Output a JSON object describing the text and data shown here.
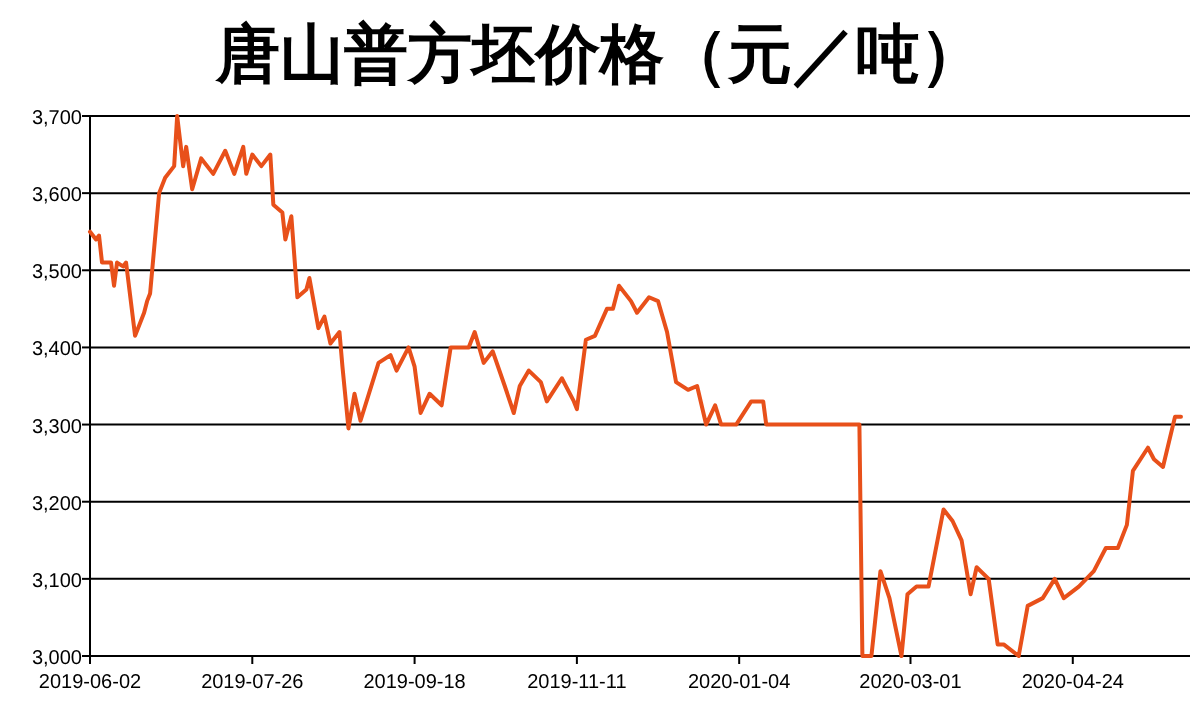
{
  "chart_data": {
    "type": "line",
    "title": "唐山普方坯价格（元／吨）",
    "x": [
      "2019-06-02",
      "2019-06-04",
      "2019-06-05",
      "2019-06-06",
      "2019-06-09",
      "2019-06-10",
      "2019-06-11",
      "2019-06-13",
      "2019-06-14",
      "2019-06-17",
      "2019-06-20",
      "2019-06-21",
      "2019-06-22",
      "2019-06-25",
      "2019-06-27",
      "2019-06-30",
      "2019-07-01",
      "2019-07-03",
      "2019-07-04",
      "2019-07-06",
      "2019-07-09",
      "2019-07-13",
      "2019-07-17",
      "2019-07-20",
      "2019-07-23",
      "2019-07-24",
      "2019-07-26",
      "2019-07-29",
      "2019-08-01",
      "2019-08-02",
      "2019-08-05",
      "2019-08-06",
      "2019-08-08",
      "2019-08-10",
      "2019-08-13",
      "2019-08-14",
      "2019-08-17",
      "2019-08-19",
      "2019-08-21",
      "2019-08-24",
      "2019-08-25",
      "2019-08-27",
      "2019-08-29",
      "2019-08-31",
      "2019-09-04",
      "2019-09-06",
      "2019-09-10",
      "2019-09-12",
      "2019-09-16",
      "2019-09-18",
      "2019-09-20",
      "2019-09-23",
      "2019-09-27",
      "2019-09-30",
      "2019-10-06",
      "2019-10-08",
      "2019-10-11",
      "2019-10-14",
      "2019-10-18",
      "2019-10-21",
      "2019-10-23",
      "2019-10-26",
      "2019-10-30",
      "2019-11-01",
      "2019-11-06",
      "2019-11-10",
      "2019-11-11",
      "2019-11-14",
      "2019-11-17",
      "2019-11-21",
      "2019-11-23",
      "2019-11-25",
      "2019-11-29",
      "2019-12-01",
      "2019-12-05",
      "2019-12-08",
      "2019-12-11",
      "2019-12-14",
      "2019-12-18",
      "2019-12-21",
      "2019-12-24",
      "2019-12-27",
      "2019-12-29",
      "2020-01-03",
      "2020-01-08",
      "2020-01-12",
      "2020-01-13",
      "2020-02-13",
      "2020-02-14",
      "2020-02-17",
      "2020-02-20",
      "2020-02-23",
      "2020-02-27",
      "2020-02-29",
      "2020-03-03",
      "2020-03-07",
      "2020-03-09",
      "2020-03-12",
      "2020-03-15",
      "2020-03-18",
      "2020-03-21",
      "2020-03-23",
      "2020-03-27",
      "2020-03-30",
      "2020-04-01",
      "2020-04-06",
      "2020-04-09",
      "2020-04-14",
      "2020-04-18",
      "2020-04-21",
      "2020-04-26",
      "2020-05-01",
      "2020-05-05",
      "2020-05-09",
      "2020-05-12",
      "2020-05-14",
      "2020-05-19",
      "2020-05-21",
      "2020-05-24",
      "2020-05-28",
      "2020-05-30"
    ],
    "values": [
      3550,
      3540,
      3545,
      3510,
      3510,
      3480,
      3510,
      3505,
      3510,
      3415,
      3445,
      3460,
      3470,
      3600,
      3620,
      3635,
      3700,
      3635,
      3660,
      3605,
      3645,
      3625,
      3655,
      3625,
      3660,
      3625,
      3650,
      3635,
      3650,
      3585,
      3575,
      3540,
      3570,
      3465,
      3475,
      3490,
      3425,
      3440,
      3405,
      3420,
      3375,
      3295,
      3340,
      3305,
      3355,
      3380,
      3390,
      3370,
      3400,
      3375,
      3315,
      3340,
      3325,
      3400,
      3400,
      3420,
      3380,
      3395,
      3350,
      3315,
      3350,
      3370,
      3355,
      3330,
      3360,
      3330,
      3320,
      3410,
      3415,
      3450,
      3450,
      3480,
      3460,
      3445,
      3465,
      3460,
      3420,
      3355,
      3345,
      3350,
      3300,
      3325,
      3300,
      3300,
      3330,
      3330,
      3300,
      3300,
      3000,
      3000,
      3110,
      3075,
      3000,
      3080,
      3090,
      3090,
      3130,
      3190,
      3175,
      3150,
      3080,
      3115,
      3100,
      3015,
      3015,
      3000,
      3065,
      3075,
      3100,
      3075,
      3090,
      3110,
      3140,
      3140,
      3170,
      3240,
      3270,
      3255,
      3245,
      3310,
      3310
    ],
    "color": "#e8501a",
    "line_style": "solid",
    "marker": "none",
    "xlim": [
      "2019-06-02",
      "2020-06-02"
    ],
    "xticks": [
      {
        "value": "2019-06-02",
        "label": "2019-06-02"
      },
      {
        "value": "2019-07-26",
        "label": "2019-07-26"
      },
      {
        "value": "2019-09-18",
        "label": "2019-09-18"
      },
      {
        "value": "2019-11-11",
        "label": "2019-11-11"
      },
      {
        "value": "2020-01-04",
        "label": "2020-01-04"
      },
      {
        "value": "2020-03-01",
        "label": "2020-03-01"
      },
      {
        "value": "2020-04-24",
        "label": "2020-04-24"
      }
    ],
    "ylim": [
      3000,
      3700
    ],
    "yticks": [
      {
        "value": 3000,
        "label": "3,000"
      },
      {
        "value": 3100,
        "label": "3,100"
      },
      {
        "value": 3200,
        "label": "3,200"
      },
      {
        "value": 3300,
        "label": "3,300"
      },
      {
        "value": 3400,
        "label": "3,400"
      },
      {
        "value": 3500,
        "label": "3,500"
      },
      {
        "value": 3600,
        "label": "3,600"
      },
      {
        "value": 3700,
        "label": "3,700"
      }
    ],
    "grid": "y"
  }
}
